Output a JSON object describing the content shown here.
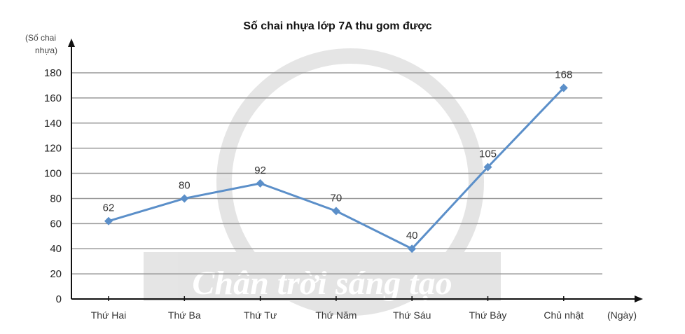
{
  "chart_data": {
    "type": "line",
    "title": "Số chai nhựa lớp 7A thu gom được",
    "ylabel": "(Số chai nhựa)",
    "ylabel_lines": [
      "(Số chai",
      "nhựa)"
    ],
    "xlabel": "(Ngày)",
    "categories": [
      "Thứ Hai",
      "Thứ Ba",
      "Thứ Tư",
      "Thứ Năm",
      "Thứ Sáu",
      "Thứ Bảy",
      "Chủ nhật"
    ],
    "values": [
      62,
      80,
      92,
      70,
      40,
      105,
      168
    ],
    "data_labels": [
      "62",
      "80",
      "92",
      "70",
      "40",
      "105",
      "168"
    ],
    "ylim": [
      0,
      180
    ],
    "yticks": [
      0,
      20,
      40,
      60,
      80,
      100,
      120,
      140,
      160,
      180
    ],
    "grid": true,
    "line_color": "#5b8fc9",
    "marker": "diamond"
  },
  "watermark": "Chân trời sáng tạo"
}
